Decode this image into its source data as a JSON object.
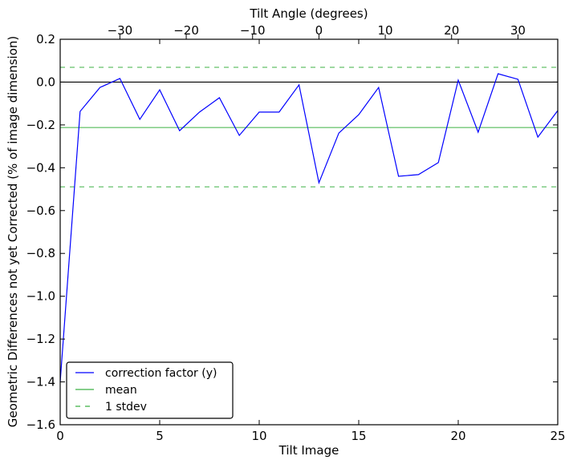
{
  "chart_data": {
    "type": "line",
    "title": "",
    "xlabel": "Tilt Image",
    "ylabel": "Geometric Differences not yet Corrected (% of image dimension)",
    "x2label": "Tilt Angle (degrees)",
    "xlim": [
      0,
      25
    ],
    "ylim": [
      -1.6,
      0.2
    ],
    "x2lim": [
      -39,
      36
    ],
    "xticks": [
      0,
      5,
      10,
      15,
      20,
      25
    ],
    "yticks": [
      0.2,
      0.0,
      -0.2,
      -0.4,
      -0.6,
      -0.8,
      -1.0,
      -1.2,
      -1.4,
      -1.6
    ],
    "ytick_labels": [
      "0.2",
      "0.0",
      "−0.2",
      "−0.4",
      "−0.6",
      "−0.8",
      "−1.0",
      "−1.2",
      "−1.4",
      "−1.6"
    ],
    "x2ticks": [
      -30,
      -20,
      -10,
      0,
      10,
      20,
      30
    ],
    "x2tick_labels": [
      "−30",
      "−20",
      "−10",
      "0",
      "10",
      "20",
      "30"
    ],
    "x": [
      0,
      1,
      2,
      3,
      4,
      5,
      6,
      7,
      8,
      9,
      10,
      11,
      12,
      13,
      14,
      15,
      16,
      17,
      18,
      19,
      20,
      21,
      22,
      23,
      24,
      25
    ],
    "series": [
      {
        "name": "correction factor (y)",
        "color": "#0000ff",
        "style": "solid",
        "values": [
          -1.4,
          -0.137,
          -0.025,
          0.017,
          -0.174,
          -0.036,
          -0.227,
          -0.14,
          -0.073,
          -0.249,
          -0.14,
          -0.14,
          -0.013,
          -0.47,
          -0.238,
          -0.152,
          -0.025,
          -0.44,
          -0.432,
          -0.376,
          0.009,
          -0.234,
          0.039,
          0.013,
          -0.257,
          -0.133
        ]
      },
      {
        "name": "mean",
        "color": "#3cb043",
        "style": "solid",
        "value": -0.212
      },
      {
        "name": "1 stdev",
        "color": "#3cb043",
        "style": "dashed",
        "values_hlines": [
          0.069,
          -0.489
        ]
      }
    ],
    "zero_line": 0.0,
    "legend": "bottom-left",
    "grid": false
  }
}
